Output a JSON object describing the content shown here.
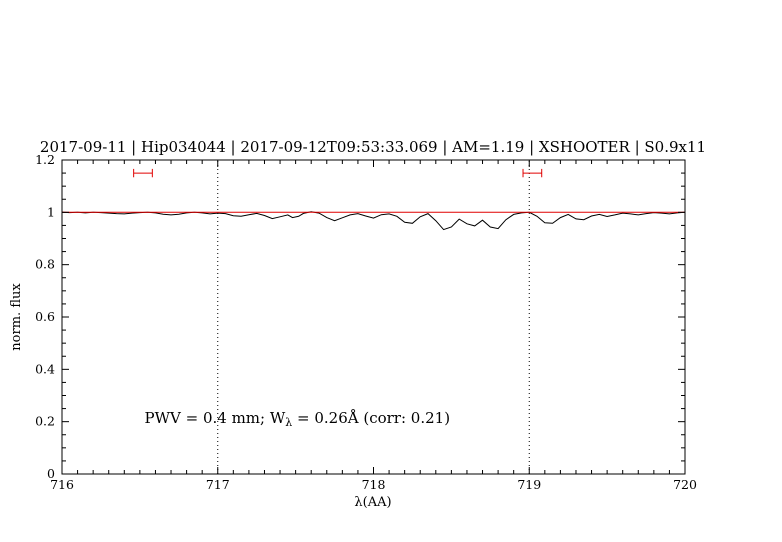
{
  "chart_data": {
    "type": "line",
    "title": "2017-09-11 | Hip034044 | 2017-09-12T09:53:33.069 | AM=1.19 | XSHOOTER | S0.9x11",
    "xlabel": "λ(AA)",
    "ylabel": "norm. flux",
    "xlim": [
      716,
      720
    ],
    "ylim": [
      0,
      1.2
    ],
    "xticks": [
      716,
      717,
      718,
      719,
      720
    ],
    "yticks": [
      0,
      0.2,
      0.4,
      0.6,
      0.8,
      1,
      1.2
    ],
    "ytick_labels": [
      "0",
      "0.2",
      "0.4",
      "0.6",
      "0.8",
      "1",
      "1.2"
    ],
    "x_minor_step": 0.1,
    "y_minor_step": 0.05,
    "grid": "off",
    "legend": "none",
    "vlines": [
      717,
      719
    ],
    "colors": {
      "title": "#0000e0",
      "annotation": "#0000e0",
      "observed": "#000000",
      "model": "#e00000",
      "marker": "#e00000"
    },
    "series": [
      {
        "name": "observed-spectrum",
        "color": "#000000",
        "points": [
          [
            716.0,
            1.0
          ],
          [
            716.05,
            0.999
          ],
          [
            716.1,
            1.0
          ],
          [
            716.15,
            0.998
          ],
          [
            716.2,
            1.0
          ],
          [
            716.25,
            0.999
          ],
          [
            716.3,
            0.997
          ],
          [
            716.35,
            0.995
          ],
          [
            716.4,
            0.994
          ],
          [
            716.45,
            0.997
          ],
          [
            716.5,
            0.999
          ],
          [
            716.55,
            1.0
          ],
          [
            716.6,
            0.998
          ],
          [
            716.65,
            0.993
          ],
          [
            716.7,
            0.99
          ],
          [
            716.75,
            0.993
          ],
          [
            716.8,
            0.998
          ],
          [
            716.85,
            1.0
          ],
          [
            716.9,
            0.998
          ],
          [
            716.95,
            0.994
          ],
          [
            717.0,
            0.997
          ],
          [
            717.05,
            0.995
          ],
          [
            717.1,
            0.987
          ],
          [
            717.15,
            0.985
          ],
          [
            717.2,
            0.991
          ],
          [
            717.25,
            0.996
          ],
          [
            717.3,
            0.988
          ],
          [
            717.35,
            0.976
          ],
          [
            717.4,
            0.983
          ],
          [
            717.45,
            0.99
          ],
          [
            717.48,
            0.98
          ],
          [
            717.52,
            0.985
          ],
          [
            717.55,
            0.996
          ],
          [
            717.6,
            1.002
          ],
          [
            717.65,
            0.997
          ],
          [
            717.7,
            0.98
          ],
          [
            717.75,
            0.968
          ],
          [
            717.8,
            0.979
          ],
          [
            717.85,
            0.99
          ],
          [
            717.9,
            0.995
          ],
          [
            717.95,
            0.986
          ],
          [
            718.0,
            0.978
          ],
          [
            718.05,
            0.991
          ],
          [
            718.1,
            0.994
          ],
          [
            718.15,
            0.985
          ],
          [
            718.2,
            0.962
          ],
          [
            718.25,
            0.958
          ],
          [
            718.3,
            0.983
          ],
          [
            718.35,
            0.995
          ],
          [
            718.4,
            0.968
          ],
          [
            718.45,
            0.934
          ],
          [
            718.5,
            0.944
          ],
          [
            718.55,
            0.974
          ],
          [
            718.6,
            0.956
          ],
          [
            718.65,
            0.948
          ],
          [
            718.7,
            0.97
          ],
          [
            718.75,
            0.944
          ],
          [
            718.8,
            0.938
          ],
          [
            718.85,
            0.972
          ],
          [
            718.9,
            0.992
          ],
          [
            718.95,
            0.998
          ],
          [
            719.0,
            1.0
          ],
          [
            719.05,
            0.985
          ],
          [
            719.1,
            0.96
          ],
          [
            719.15,
            0.958
          ],
          [
            719.2,
            0.98
          ],
          [
            719.25,
            0.992
          ],
          [
            719.3,
            0.975
          ],
          [
            719.35,
            0.972
          ],
          [
            719.4,
            0.986
          ],
          [
            719.45,
            0.992
          ],
          [
            719.5,
            0.984
          ],
          [
            719.55,
            0.99
          ],
          [
            719.6,
            0.997
          ],
          [
            719.65,
            0.994
          ],
          [
            719.7,
            0.99
          ],
          [
            719.75,
            0.995
          ],
          [
            719.8,
            0.999
          ],
          [
            719.85,
            0.997
          ],
          [
            719.9,
            0.994
          ],
          [
            719.95,
            0.998
          ],
          [
            720.0,
            1.0
          ]
        ]
      },
      {
        "name": "model-continuum",
        "color": "#e00000",
        "points": [
          [
            716.0,
            1.0
          ],
          [
            720.0,
            1.0
          ]
        ]
      }
    ],
    "range_markers": [
      {
        "x_center": 716.52,
        "half_width": 0.06,
        "y": 1.15,
        "cap_half_height": 0.016
      },
      {
        "x_center": 719.02,
        "half_width": 0.06,
        "y": 1.15,
        "cap_half_height": 0.016
      }
    ],
    "annotation": {
      "part1": "PWV = 0.4 mm; W",
      "sub": "λ",
      "part2": " = 0.26Å (corr: 0.21)",
      "x": 716.53,
      "y": 0.195
    }
  }
}
